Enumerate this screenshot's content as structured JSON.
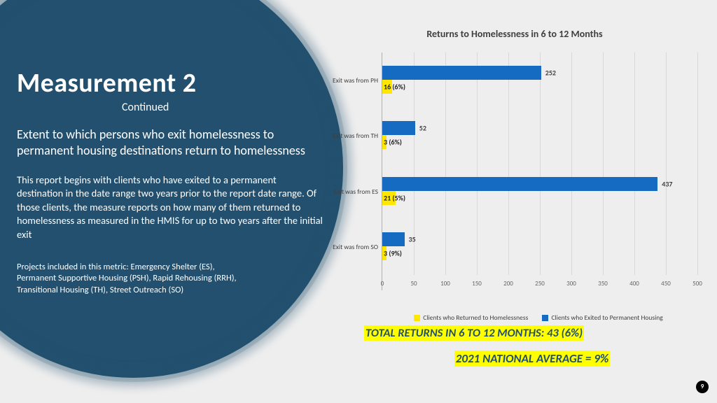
{
  "page_number": "9",
  "left": {
    "title": "Measurement 2",
    "subtitle": "Continued",
    "lead": "Extent to which persons who exit homelessness to permanent housing destinations return to homelessness",
    "body": "This report begins with clients who have exited to a permanent destination in the date range two years prior to the report date range. Of those clients, the measure reports on how many of them returned to homelessness as measured in the HMIS for up to two years after the initial exit",
    "footnote": "Projects included in this metric: Emergency Shelter (ES), Permanent Supportive Housing (PSH), Rapid Rehousing (RRH), Transitional Housing (TH), Street Outreach (SO)"
  },
  "chart": {
    "type": "bar",
    "title": "Returns to Homelessness in 6 to 12 Months",
    "xmax": 500,
    "xtick_step": 50,
    "bar_color_exited": "#156bc1",
    "bar_color_returned": "#ffe700",
    "grid_color": "#d8d8d8",
    "background_color": "#eeeeee",
    "label_fontsize": 10,
    "title_fontsize": 14,
    "categories": [
      {
        "label": "Exit was from PH",
        "exited": 252,
        "returned": 16,
        "pct_text": "(6%)"
      },
      {
        "label": "Exit was from TH",
        "exited": 52,
        "returned": 3,
        "pct_text": "(6%)"
      },
      {
        "label": "Exit was from ES",
        "exited": 437,
        "returned": 21,
        "pct_text": "(5%)"
      },
      {
        "label": "Exit was from SO",
        "exited": 35,
        "returned": 3,
        "pct_text": "(9%)"
      }
    ],
    "legend_returned": "Clients who Returned to Homelessness",
    "legend_exited": "Clients who Exited to Permanent Housing"
  },
  "totals": {
    "line1": "TOTAL RETURNS IN 6 TO 12 MONTHS: 43 (6%)",
    "line2": "2021 NATIONAL AVERAGE = 9%"
  },
  "colors": {
    "panel": "#22506e",
    "page_bg": "#eeeeee",
    "highlight": "#ffff00",
    "text_dark": "#404040"
  }
}
